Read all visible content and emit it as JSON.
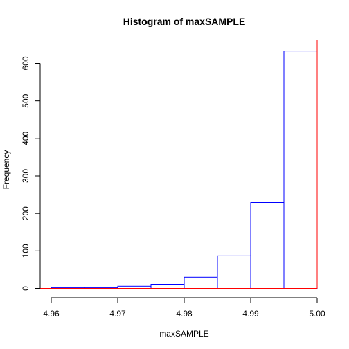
{
  "chart_data": {
    "type": "bar",
    "title": "Histogram of maxSAMPLE",
    "xlabel": "maxSAMPLE",
    "ylabel": "Frequency",
    "xlim": [
      4.96,
      5.0
    ],
    "ylim": [
      0,
      600
    ],
    "x_ticks": [
      "4.96",
      "4.97",
      "4.98",
      "4.99",
      "5.00"
    ],
    "y_ticks": [
      "0",
      "100",
      "200",
      "300",
      "400",
      "500",
      "600"
    ],
    "bins": [
      {
        "x0": 4.96,
        "x1": 4.965,
        "count": 2
      },
      {
        "x0": 4.965,
        "x1": 4.97,
        "count": 2
      },
      {
        "x0": 4.97,
        "x1": 4.975,
        "count": 6
      },
      {
        "x0": 4.975,
        "x1": 4.98,
        "count": 11
      },
      {
        "x0": 4.98,
        "x1": 4.985,
        "count": 30
      },
      {
        "x0": 4.985,
        "x1": 4.99,
        "count": 87
      },
      {
        "x0": 4.99,
        "x1": 4.995,
        "count": 229
      },
      {
        "x0": 4.995,
        "x1": 5.0,
        "count": 633
      }
    ],
    "bar_color": "#0000ff",
    "reference_lines": {
      "color": "#ff0000",
      "horizontal_y": 0,
      "vertical_x": 5.0
    },
    "grid": false
  }
}
